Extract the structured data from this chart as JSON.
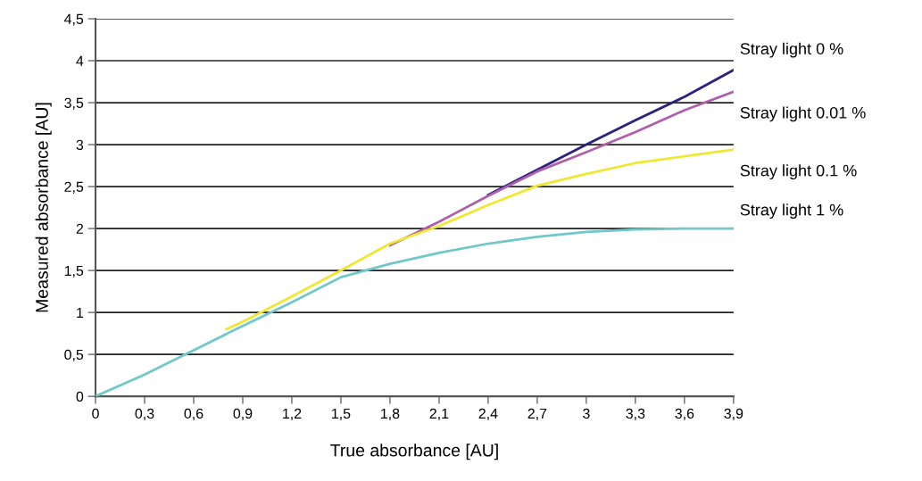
{
  "chart_data": {
    "type": "line",
    "xlabel": "True absorbance [AU]",
    "ylabel": "Measured absorbance [AU]",
    "xlim": [
      0,
      3.9
    ],
    "ylim": [
      0,
      4.5
    ],
    "xticks": [
      0,
      {
        "value": 0.3,
        "label": "0,3"
      },
      {
        "value": 0.6,
        "label": "0,6"
      },
      {
        "value": 0.9,
        "label": "0,9"
      },
      {
        "value": 1.2,
        "label": "1,2"
      },
      {
        "value": 1.5,
        "label": "1,5"
      },
      {
        "value": 1.8,
        "label": "1,8"
      },
      {
        "value": 2.1,
        "label": "2,1"
      },
      {
        "value": 2.4,
        "label": "2,4"
      },
      {
        "value": 2.7,
        "label": "2,7"
      },
      3,
      {
        "value": 3.3,
        "label": "3,3"
      },
      {
        "value": 3.6,
        "label": "3,6"
      },
      {
        "value": 3.9,
        "label": "3,9"
      }
    ],
    "yticks": [
      0,
      {
        "value": 0.5,
        "label": "0,5"
      },
      1,
      {
        "value": 1.5,
        "label": "1,5"
      },
      2,
      {
        "value": 2.5,
        "label": "2,5"
      },
      3,
      {
        "value": 3.5,
        "label": "3,5"
      },
      4,
      {
        "value": 4.5,
        "label": "4,5"
      }
    ],
    "grid": "y",
    "legend": false,
    "marker": "none",
    "line_style": "solid",
    "series": [
      {
        "name": "Stray light 0 %",
        "color": "#2a2280",
        "x": [
          2.4,
          2.7,
          3.0,
          3.3,
          3.6,
          3.9
        ],
        "values": [
          2.4,
          2.7,
          3.0,
          3.29,
          3.57,
          3.89
        ]
      },
      {
        "name": "Stray light 0.01 %",
        "color": "#b060a8",
        "x": [
          1.8,
          2.1,
          2.4,
          2.7,
          3.0,
          3.3,
          3.6,
          3.9
        ],
        "values": [
          1.8,
          2.08,
          2.39,
          2.68,
          2.91,
          3.15,
          3.41,
          3.63
        ]
      },
      {
        "name": "Stray light 0.1 %",
        "color": "#f0e830",
        "x": [
          0.8,
          0.9,
          1.2,
          1.5,
          1.8,
          2.1,
          2.4,
          2.7,
          3.0,
          3.3,
          3.6,
          3.9
        ],
        "values": [
          0.8,
          0.89,
          1.19,
          1.5,
          1.82,
          2.03,
          2.28,
          2.51,
          2.65,
          2.78,
          2.86,
          2.94
        ]
      },
      {
        "name": "Stray light 1 %",
        "color": "#70c8c8",
        "x": [
          0,
          0.3,
          0.6,
          0.9,
          1.2,
          1.5,
          1.8,
          2.1,
          2.4,
          2.7,
          3.0,
          3.3,
          3.6,
          3.9
        ],
        "values": [
          0,
          0.26,
          0.55,
          0.84,
          1.12,
          1.42,
          1.58,
          1.71,
          1.82,
          1.9,
          1.96,
          1.99,
          2.0,
          2.0
        ]
      }
    ]
  }
}
